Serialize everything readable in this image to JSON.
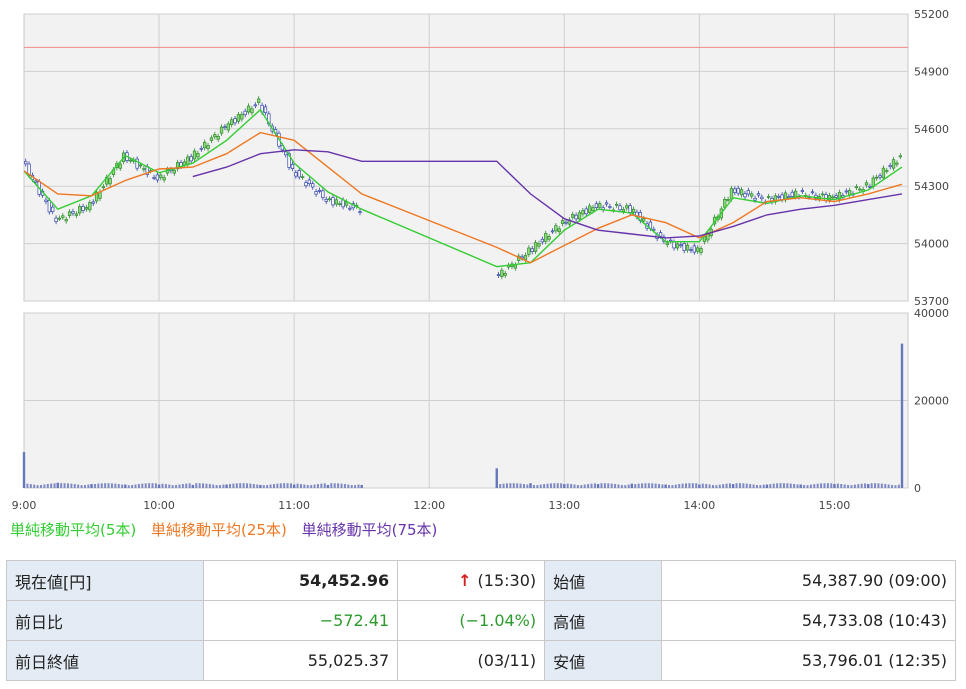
{
  "chart_data": [
    {
      "type": "candlestick",
      "y_ticks": [
        "55200",
        "54900",
        "54600",
        "54300",
        "54000",
        "53700"
      ],
      "ylim": [
        53700,
        55200
      ],
      "reference_line": 55025.37,
      "times": [
        "09:00",
        "09:15",
        "09:30",
        "09:45",
        "10:00",
        "10:15",
        "10:30",
        "10:45",
        "11:00",
        "11:15",
        "11:30",
        "12:30",
        "12:45",
        "13:00",
        "13:15",
        "13:30",
        "13:45",
        "14:00",
        "14:15",
        "14:30",
        "14:45",
        "15:00",
        "15:15",
        "15:30"
      ],
      "series": [
        {
          "name": "単純移動平均(5本)",
          "color": "#33cc33",
          "values": [
            54380,
            54180,
            54250,
            54460,
            54370,
            54420,
            54540,
            54700,
            54420,
            54270,
            54180,
            53880,
            53900,
            54070,
            54180,
            54160,
            54010,
            54010,
            54240,
            54210,
            54250,
            54230,
            54280,
            54400
          ]
        },
        {
          "name": "単純移動平均(25本)",
          "color": "#ee7722",
          "values": [
            54380,
            54260,
            54250,
            54330,
            54390,
            54400,
            54470,
            54580,
            54540,
            54400,
            54260,
            53980,
            53900,
            53990,
            54080,
            54150,
            54110,
            54030,
            54110,
            54220,
            54240,
            54220,
            54260,
            54310
          ]
        },
        {
          "name": "単純移動平均(75本)",
          "color": "#6633aa",
          "values": [
            null,
            null,
            null,
            null,
            null,
            54350,
            54400,
            54470,
            54490,
            54480,
            54430,
            54430,
            54260,
            54130,
            54070,
            54050,
            54030,
            54040,
            54090,
            54150,
            54180,
            54200,
            54230,
            54260
          ]
        }
      ],
      "price_path": [
        54430,
        54120,
        54200,
        54460,
        54340,
        54450,
        54610,
        54740,
        54380,
        54230,
        54180,
        53820,
        53960,
        54110,
        54200,
        54180,
        54010,
        53960,
        54280,
        54230,
        54260,
        54240,
        54300,
        54453
      ]
    },
    {
      "type": "bar",
      "y_ticks": [
        "40000",
        "20000",
        "0"
      ],
      "ylim": [
        0,
        40000
      ],
      "volumes": [
        8200,
        1200,
        900,
        800,
        800,
        700,
        800,
        700,
        800,
        700,
        700,
        4500,
        1100,
        900,
        900,
        1000,
        800,
        800,
        900,
        800,
        800,
        900,
        900,
        33000
      ]
    }
  ],
  "x_ticks": [
    "9:00",
    "10:00",
    "11:00",
    "12:00",
    "13:00",
    "14:00",
    "15:00"
  ],
  "legend": [
    {
      "label": "単純移動平均(5本)",
      "color": "#33cc33"
    },
    {
      "label": "単純移動平均(25本)",
      "color": "#ee7722"
    },
    {
      "label": "単純移動平均(75本)",
      "color": "#6633aa"
    }
  ],
  "table": {
    "current_label": "現在値[円]",
    "current_value": "54,452.96",
    "current_arrow": "↑",
    "current_time": "(15:30)",
    "open_label": "始値",
    "open_value": "54,387.90 (09:00)",
    "change_label": "前日比",
    "change_value": "−572.41",
    "change_pct": "(−1.04%)",
    "high_label": "高値",
    "high_value": "54,733.08 (10:43)",
    "prev_label": "前日終値",
    "prev_value": "55,025.37",
    "prev_date": "(03/11)",
    "low_label": "安値",
    "low_value": "53,796.01 (12:35)"
  }
}
